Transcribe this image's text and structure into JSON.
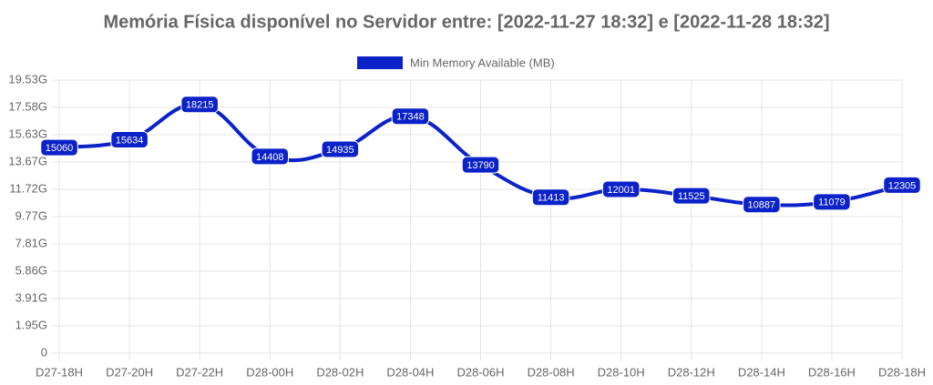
{
  "chart_data": {
    "type": "line",
    "title": "Memória Física disponível no Servidor entre: [2022-11-27 18:32] e [2022-11-28 18:32]",
    "categories": [
      "D27-18H",
      "D27-20H",
      "D27-22H",
      "D28-00H",
      "D28-02H",
      "D28-04H",
      "D28-06H",
      "D28-08H",
      "D28-10H",
      "D28-12H",
      "D28-14H",
      "D28-16H",
      "D28-18H"
    ],
    "series": [
      {
        "name": "Min Memory Available (MB)",
        "color": "#0b22c9",
        "values": [
          15060,
          15634,
          18215,
          14408,
          14935,
          17348,
          13790,
          11413,
          12001,
          11525,
          10887,
          11079,
          12305
        ]
      }
    ],
    "ylim": [
      0,
      20000
    ],
    "yticks": [
      0,
      {
        "value": 2000,
        "label": "1.95G"
      },
      {
        "value": 4000,
        "label": "3.91G"
      },
      {
        "value": 6000,
        "label": "5.86G"
      },
      {
        "value": 8000,
        "label": "7.81G"
      },
      {
        "value": 10000,
        "label": "9.77G"
      },
      {
        "value": 12000,
        "label": "11.72G"
      },
      {
        "value": 14000,
        "label": "13.67G"
      },
      {
        "value": 16000,
        "label": "15.63G"
      },
      {
        "value": 18000,
        "label": "17.58G"
      },
      {
        "value": 20000,
        "label": "19.53G"
      }
    ],
    "grid": true,
    "legend": "top"
  }
}
